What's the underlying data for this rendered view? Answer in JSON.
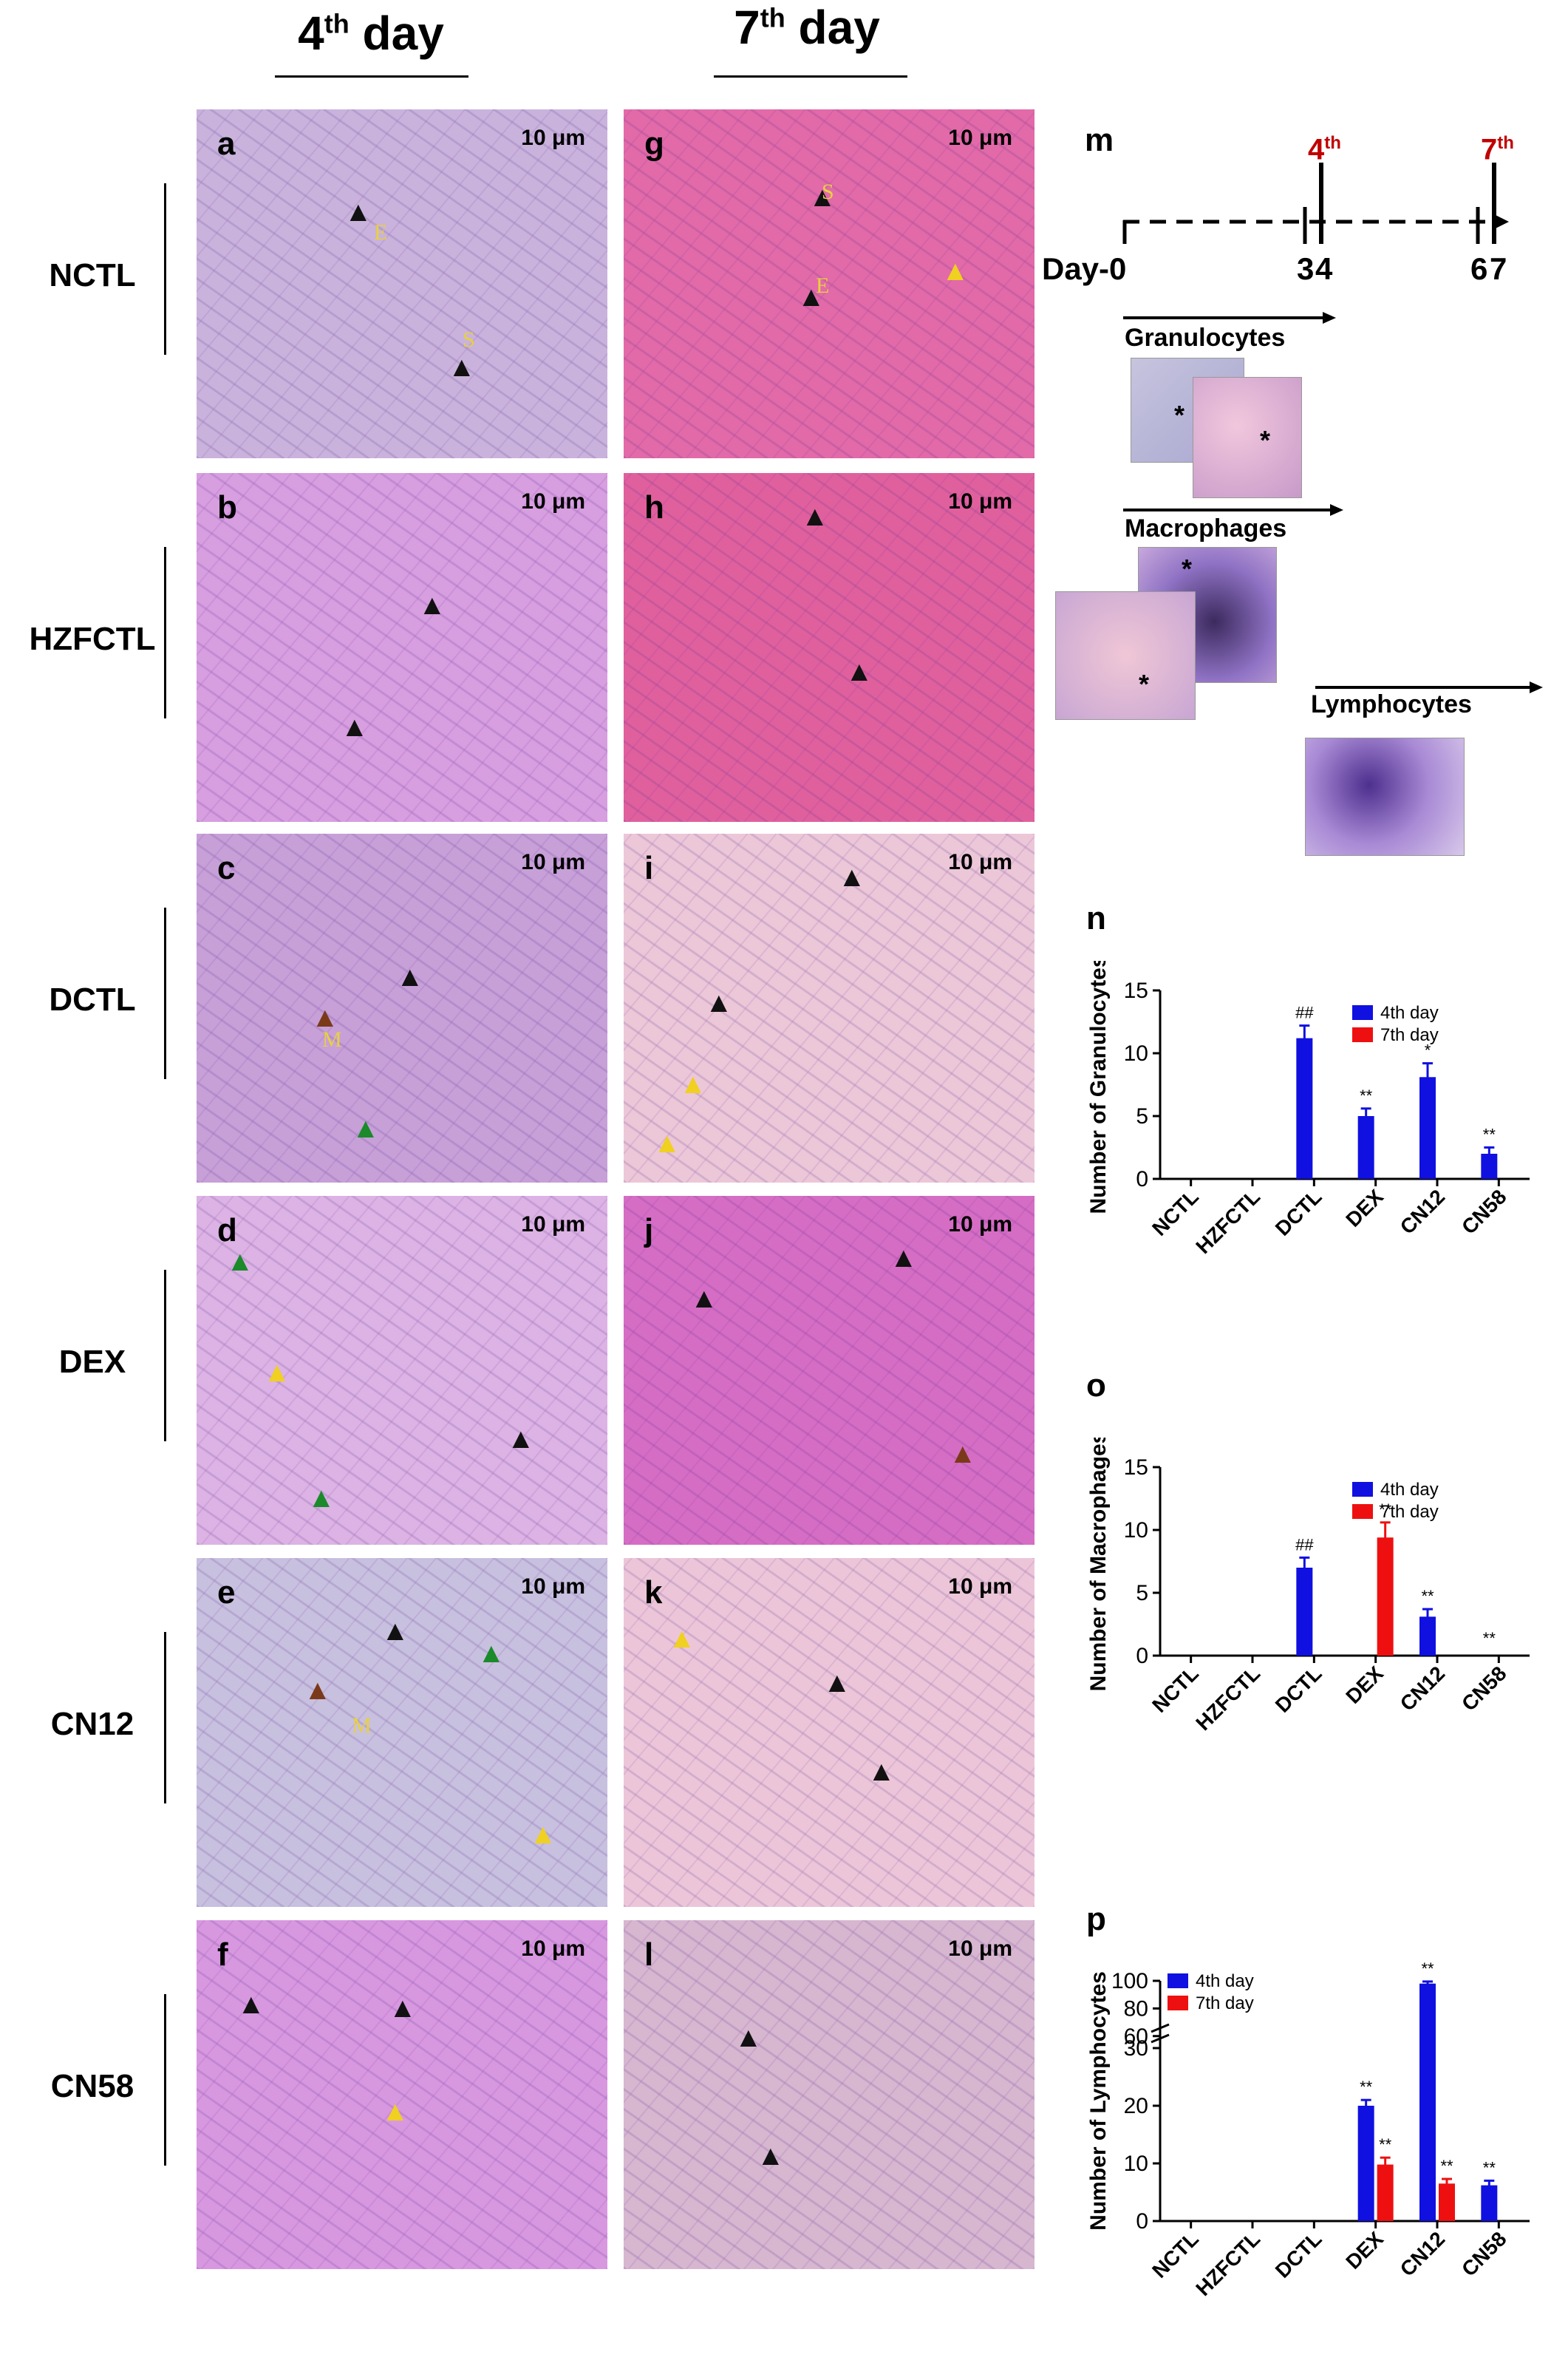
{
  "columns": {
    "col1": {
      "main": "4",
      "sup": "th",
      "rest": " day"
    },
    "col2": {
      "main": "7",
      "sup": "th",
      "rest": " day"
    }
  },
  "rows": [
    "NCTL",
    "HZFCTL",
    "DCTL",
    "DEX",
    "CN12",
    "CN58"
  ],
  "scale_label": "10 μm",
  "panel_letters": [
    "a",
    "b",
    "c",
    "d",
    "e",
    "f",
    "g",
    "h",
    "i",
    "j",
    "k",
    "l"
  ],
  "panel_colors": [
    "#c9b3dc",
    "#d79ee0",
    "#c7a0d8",
    "#dcb3e4",
    "#c8c0df",
    "#d898e0",
    "#e26aa8",
    "#e0609e",
    "#ecc7d8",
    "#d66dc4",
    "#ecc6d8",
    "#d7b6d0"
  ],
  "panel_marks": {
    "E": "E",
    "S": "S",
    "M": "M"
  },
  "timeline": {
    "label": "m",
    "day_label": "Day-",
    "ticks": [
      "0",
      "3",
      "4",
      "6",
      "7"
    ],
    "marker4": {
      "main": "4",
      "sup": "th"
    },
    "marker7": {
      "main": "7",
      "sup": "th"
    },
    "marker_color": "#c00000",
    "stages": [
      "Granulocytes",
      "Macrophages",
      "Lymphocytes"
    ]
  },
  "colors": {
    "day4": "#1010e0",
    "day7": "#ee1010"
  },
  "chart_data": [
    {
      "label": "n",
      "type": "bar",
      "ylabel": "Number of Granulocytes",
      "categories": [
        "NCTL",
        "HZFCTL",
        "DCTL",
        "DEX",
        "CN12",
        "CN58"
      ],
      "ylim": [
        0,
        15
      ],
      "yticks": [
        0,
        5,
        10,
        15
      ],
      "legend": [
        "4th day",
        "7th day"
      ],
      "series": [
        {
          "name": "4th day",
          "values": [
            0,
            0,
            11.2,
            5.0,
            8.1,
            2.0
          ],
          "errors": [
            0,
            0,
            1.0,
            0.6,
            1.1,
            0.5
          ]
        },
        {
          "name": "7th day",
          "values": [
            0,
            0,
            0,
            0,
            0,
            0
          ],
          "errors": [
            0,
            0,
            0,
            0,
            0,
            0
          ]
        }
      ],
      "annotations": [
        {
          "category": "DCTL",
          "series": 0,
          "text": "##"
        },
        {
          "category": "DEX",
          "series": 0,
          "text": "**"
        },
        {
          "category": "CN12",
          "series": 0,
          "text": "*"
        },
        {
          "category": "CN58",
          "series": 0,
          "text": "**"
        }
      ]
    },
    {
      "label": "o",
      "type": "bar",
      "ylabel": "Number of Macrophages",
      "categories": [
        "NCTL",
        "HZFCTL",
        "DCTL",
        "DEX",
        "CN12",
        "CN58"
      ],
      "ylim": [
        0,
        15
      ],
      "yticks": [
        0,
        5,
        10,
        15
      ],
      "legend": [
        "4th day",
        "7th day"
      ],
      "series": [
        {
          "name": "4th day",
          "values": [
            0,
            0,
            7.0,
            0,
            3.1,
            0
          ],
          "errors": [
            0,
            0,
            0.8,
            0,
            0.6,
            0
          ]
        },
        {
          "name": "7th day",
          "values": [
            0,
            0,
            0,
            9.4,
            0,
            0
          ],
          "errors": [
            0,
            0,
            0,
            1.2,
            0,
            0
          ]
        }
      ],
      "annotations": [
        {
          "category": "DCTL",
          "series": 0,
          "text": "##"
        },
        {
          "category": "DEX",
          "series": 1,
          "text": "**"
        },
        {
          "category": "CN12",
          "series": 0,
          "text": "**"
        },
        {
          "category": "CN58",
          "series": 0,
          "text": "**"
        }
      ]
    },
    {
      "label": "p",
      "type": "bar",
      "ylabel": "Number of Lymphocytes",
      "categories": [
        "NCTL",
        "HZFCTL",
        "DCTL",
        "DEX",
        "CN12",
        "CN58"
      ],
      "ylim": [
        0,
        100
      ],
      "axis_break": [
        30,
        60
      ],
      "yticks": [
        0,
        10,
        20,
        30,
        60,
        80,
        100
      ],
      "legend": [
        "4th day",
        "7th day"
      ],
      "series": [
        {
          "name": "4th day",
          "values": [
            0,
            0,
            0,
            20.0,
            98.0,
            6.2
          ],
          "errors": [
            0,
            0,
            0,
            1.0,
            1.5,
            0.8
          ]
        },
        {
          "name": "7th day",
          "values": [
            0,
            0,
            0,
            9.8,
            6.5,
            0
          ],
          "errors": [
            0,
            0,
            0,
            1.2,
            0.8,
            0
          ]
        }
      ],
      "annotations": [
        {
          "category": "DEX",
          "series": 0,
          "text": "**"
        },
        {
          "category": "DEX",
          "series": 1,
          "text": "**"
        },
        {
          "category": "CN12",
          "series": 0,
          "text": "**"
        },
        {
          "category": "CN12",
          "series": 1,
          "text": "**"
        },
        {
          "category": "CN58",
          "series": 0,
          "text": "**"
        }
      ]
    }
  ]
}
